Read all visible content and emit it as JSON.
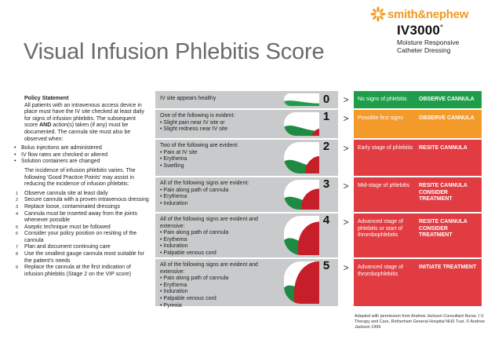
{
  "brand": {
    "logo_icon": "starburst-icon",
    "name": "smith&nephew",
    "product_name": "IV3000",
    "product_mark": "°",
    "product_line1": "Moisture Responsive",
    "product_line2": "Catheter Dressing",
    "color": "#f29a1f"
  },
  "title": "Visual Infusion Phlebitis Score",
  "policy": {
    "heading": "Policy Statement",
    "intro_1": "All patients with an intravenous access device in place must have the IV site checked at least daily for signs of infusion phlebitis. The subsequent score",
    "intro_and": "AND",
    "intro_2": "action(s) taken (if any) must be documented. The cannula site must also be observed when:",
    "bullets": [
      "Bolus injections are administered",
      "IV flow rates are checked or altered",
      "Solution containers are changed"
    ],
    "middle": "The incidence of infusion phlebitis varies. The following 'Good Practice Points' may assist in reducing the incidence of infusion phlebitis:",
    "points": [
      "Observe cannula site at least daily",
      "Secure cannula with a proven intravenous dressing",
      "Replace loose, contaminated dressings",
      "Cannula must be inserted away from the joints whenever possible",
      "Aseptic technique must be followed",
      "Consider your policy position on resiting of the cannula",
      "Plan and document continuing care",
      "Use the smallest gauge cannula most suitable for the patient's needs",
      "Replace the cannula at the first indication of infusion phlebitis (Stage 2 on the VIP score)"
    ]
  },
  "chevron": ">",
  "scores": [
    {
      "score": "0",
      "lead": "IV site appears healthy",
      "symptoms": [],
      "description": "No signs of phlebitis",
      "action": "OBSERVE CANNULA",
      "color": "#1e9e4a",
      "red_fraction": 0.0
    },
    {
      "score": "1",
      "lead": "One of the following is evident:",
      "symptoms": [
        "Slight pain near IV site or",
        "Slight redness near IV site"
      ],
      "description": "Possible first signs",
      "action": "OBSERVE CANNULA",
      "color": "#f39a2b",
      "red_fraction": 0.3
    },
    {
      "score": "2",
      "lead": "Two of the following are evident:",
      "symptoms": [
        "Pain at IV site",
        "Erythema",
        "Swelling"
      ],
      "description": "Early stage of phlebitis",
      "action": "RESITE CANNULA",
      "color": "#e03c42",
      "red_fraction": 0.55
    },
    {
      "score": "3",
      "lead": "All of the following signs are evident:",
      "symptoms": [
        "Pain along path of cannula",
        "Erythema",
        "Induration"
      ],
      "description": "Mid-stage of phlebitis",
      "action": "RESITE CANNULA CONSIDER TREATMENT",
      "color": "#e03c42",
      "red_fraction": 0.7
    },
    {
      "score": "4",
      "lead": "All of the following signs are evident and extensive:",
      "symptoms": [
        "Pain along path of cannula",
        "Erythema",
        "Induration",
        "Palpable venous cord"
      ],
      "description": "Advanced stage of phlebitis or start of thrombophlebitis",
      "action": "RESITE CANNULA CONSIDER TREATMENT",
      "color": "#e03c42",
      "red_fraction": 0.85
    },
    {
      "score": "5",
      "lead": "All of the following signs are evident and extensive:",
      "symptoms": [
        "Pain along path of cannula",
        "Erythema",
        "Induration",
        "Palpable venous cord",
        "Pyrexia"
      ],
      "description": "Advanced stage of thrombophlebitis",
      "action": "INITIATE TREATMENT",
      "color": "#e03c42",
      "red_fraction": 1.0
    }
  ],
  "credit": "Adapted with permission from Andrew Jackson Consultant Nurse, I.V. Therapy and Care, Rotherham General Hospital NHS Tust. © Andrew Jackson 1999"
}
